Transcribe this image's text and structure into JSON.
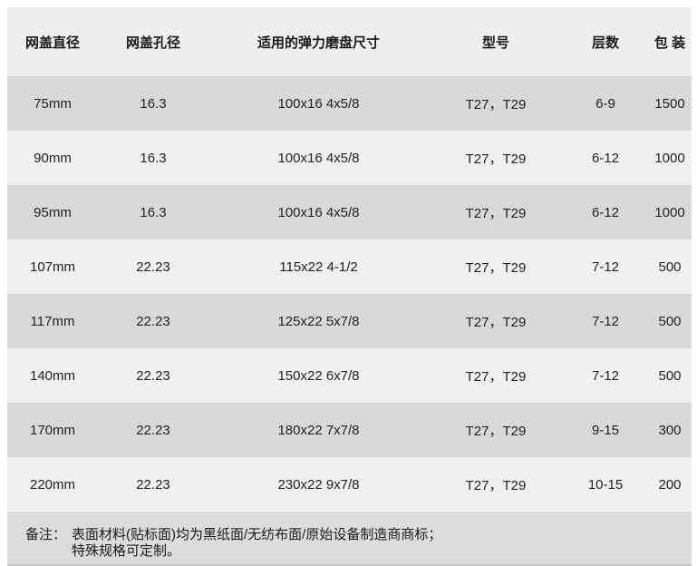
{
  "table": {
    "headers": [
      "网盖直径",
      "网盖孔径",
      "适用的弹力磨盘尺寸",
      "型号",
      "层数",
      "包 装"
    ],
    "rows": [
      [
        "75mm",
        "16.3",
        "100x16 4x5/8",
        "T27，T29",
        "6-9",
        "1500"
      ],
      [
        "90mm",
        "16.3",
        "100x16 4x5/8",
        "T27，T29",
        "6-12",
        "1000"
      ],
      [
        "95mm",
        "16.3",
        "100x16 4x5/8",
        "T27，T29",
        "6-12",
        "1000"
      ],
      [
        "107mm",
        "22.23",
        "115x22 4-1/2",
        "T27，T29",
        "7-12",
        "500"
      ],
      [
        "117mm",
        "22.23",
        "125x22 5x7/8",
        "T27，T29",
        "7-12",
        "500"
      ],
      [
        "140mm",
        "22.23",
        "150x22 6x7/8",
        "T27，T29",
        "7-12",
        "500"
      ],
      [
        "170mm",
        "22.23",
        "180x22 7x7/8",
        "T27，T29",
        "9-15",
        "300"
      ],
      [
        "220mm",
        "22.23",
        "230x22 9x7/8",
        "T27，T29",
        "10-15",
        "200"
      ]
    ]
  },
  "note": {
    "label": "备注：",
    "line1": "表面材料(贴标面)均为黑纸面/无纺布面/原始设备制造商商标；",
    "line2": "特殊规格可定制。"
  },
  "colors": {
    "header_bg": "#eeeeee",
    "row_odd_bg": "#d9d9d9",
    "row_even_bg": "#f0f0f0",
    "note_bg": "#dcdcdc",
    "text": "#222222"
  }
}
